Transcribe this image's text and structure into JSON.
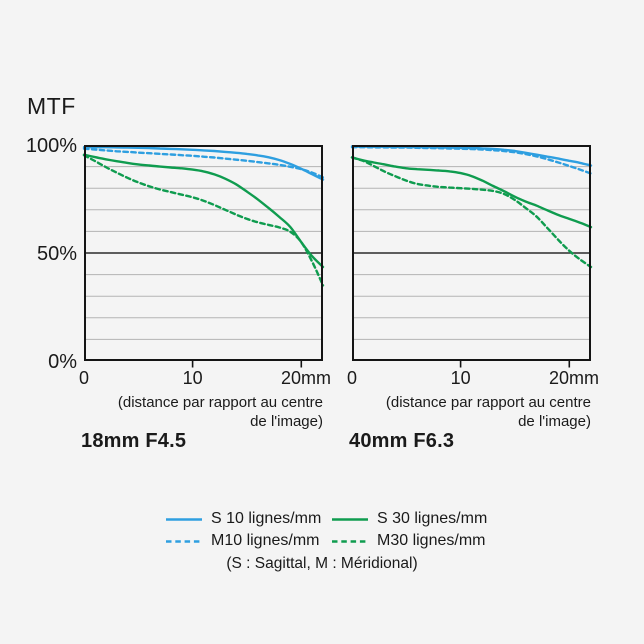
{
  "page": {
    "background": "#f4f4f4",
    "text_color": "#1a1a1a"
  },
  "header": {
    "title": "MTF"
  },
  "colors": {
    "blue": "#2e9fe0",
    "green": "#0f9c4f",
    "axis": "#141414",
    "grid_minor": "#b3b3b3",
    "grid_major": "#2b2b2b"
  },
  "y_axis": {
    "tick_labels": [
      "100%",
      "50%",
      "0%"
    ]
  },
  "x_axis": {
    "tick_labels": [
      "0",
      "10",
      "20mm"
    ],
    "tick_values": [
      0,
      10,
      20
    ],
    "caption_line1": "(distance par rapport au centre",
    "caption_line2": "de l'image)"
  },
  "legend": {
    "items": [
      {
        "label": "S 10 lignes/mm",
        "color": "#2e9fe0",
        "dashed": false
      },
      {
        "label": "M10 lignes/mm",
        "color": "#2e9fe0",
        "dashed": true
      },
      {
        "label": "S 30 lignes/mm",
        "color": "#0f9c4f",
        "dashed": false
      },
      {
        "label": "M30 lignes/mm",
        "color": "#0f9c4f",
        "dashed": true
      }
    ],
    "note": "(S : Sagittal, M : Méridional)"
  },
  "chart_data": [
    {
      "type": "line",
      "title": "18mm F4.5",
      "ylabel": "MTF",
      "xlabel": "(distance par rapport au centre de l'image)",
      "xlim": [
        0,
        22
      ],
      "ylim": [
        0,
        100
      ],
      "x_ticks": [
        0,
        10,
        20
      ],
      "x_tick_labels": [
        "0",
        "10",
        "20mm"
      ],
      "y_tick_labels": [
        "0%",
        "50%",
        "100%"
      ],
      "grid": "horizontal every 10%, 50% emphasized",
      "legend_position": "below-figure",
      "x": [
        0,
        1,
        2,
        3,
        4,
        5,
        6,
        7,
        8,
        9,
        10,
        11,
        12,
        13,
        14,
        15,
        16,
        17,
        18,
        19,
        20,
        21,
        22
      ],
      "series": [
        {
          "name": "S 10 lignes/mm",
          "style": "solid",
          "color": "#2e9fe0",
          "values": [
            99,
            99,
            99,
            98.9,
            98.8,
            98.7,
            98.6,
            98.4,
            98.2,
            98,
            97.8,
            97.5,
            97.2,
            96.8,
            96.4,
            95.9,
            95.2,
            94.3,
            93,
            91.2,
            89,
            86.5,
            84
          ]
        },
        {
          "name": "M10 lignes/mm",
          "style": "dashed",
          "color": "#2e9fe0",
          "values": [
            98.3,
            97.9,
            97.5,
            97.1,
            96.8,
            96.5,
            96.2,
            95.9,
            95.6,
            95.3,
            95,
            94.6,
            94.2,
            93.7,
            93.2,
            92.7,
            92.1,
            91.5,
            90.8,
            89.9,
            88.8,
            87.2,
            85
          ]
        },
        {
          "name": "S 30 lignes/mm",
          "style": "solid",
          "color": "#0f9c4f",
          "values": [
            95.5,
            94.4,
            93.4,
            92.5,
            91.7,
            91,
            90.5,
            90,
            89.6,
            89.2,
            88.6,
            87.8,
            86.4,
            84.4,
            81.8,
            78.4,
            74.8,
            70.8,
            66.6,
            62,
            55,
            48.5,
            43.5
          ]
        },
        {
          "name": "M30 lignes/mm",
          "style": "dashed",
          "color": "#0f9c4f",
          "values": [
            95.3,
            92.6,
            89.8,
            87.2,
            84.8,
            82.7,
            80.9,
            79.4,
            78.2,
            77,
            75.8,
            74.2,
            72.2,
            70,
            67.8,
            65.8,
            64.2,
            63,
            61.8,
            59.8,
            55,
            46,
            35
          ]
        }
      ]
    },
    {
      "type": "line",
      "title": "40mm F6.3",
      "ylabel": "MTF",
      "xlabel": "(distance par rapport au centre de l'image)",
      "xlim": [
        0,
        22
      ],
      "ylim": [
        0,
        100
      ],
      "x_ticks": [
        0,
        10,
        20
      ],
      "x_tick_labels": [
        "0",
        "10",
        "20mm"
      ],
      "y_tick_labels": [
        "0%",
        "50%",
        "100%"
      ],
      "grid": "horizontal every 10%, 50% emphasized",
      "legend_position": "below-figure",
      "x": [
        0,
        1,
        2,
        3,
        4,
        5,
        6,
        7,
        8,
        9,
        10,
        11,
        12,
        13,
        14,
        15,
        16,
        17,
        18,
        19,
        20,
        21,
        22
      ],
      "series": [
        {
          "name": "S 10 lignes/mm",
          "style": "solid",
          "color": "#2e9fe0",
          "values": [
            99.3,
            99.3,
            99.2,
            99.2,
            99.1,
            99.1,
            99,
            99,
            98.9,
            98.8,
            98.7,
            98.6,
            98.4,
            98.2,
            97.8,
            97.2,
            96.4,
            95.5,
            94.6,
            93.7,
            92.7,
            91.7,
            90.5
          ]
        },
        {
          "name": "M10 lignes/mm",
          "style": "dashed",
          "color": "#2e9fe0",
          "values": [
            99,
            99,
            98.9,
            98.9,
            98.8,
            98.8,
            98.7,
            98.6,
            98.5,
            98.4,
            98.3,
            98.1,
            97.9,
            97.6,
            97.2,
            96.6,
            95.8,
            94.7,
            93.4,
            91.9,
            90.3,
            88.6,
            86.8
          ]
        },
        {
          "name": "S 30 lignes/mm",
          "style": "solid",
          "color": "#0f9c4f",
          "values": [
            94.3,
            92.9,
            91.9,
            91,
            90,
            89.2,
            88.8,
            88.5,
            88.2,
            87.8,
            87,
            85.6,
            83.5,
            81,
            78.6,
            76,
            73.8,
            71.9,
            69.7,
            67.6,
            65.8,
            64,
            62
          ]
        },
        {
          "name": "M30 lignes/mm",
          "style": "dashed",
          "color": "#0f9c4f",
          "values": [
            94.2,
            92.7,
            90.3,
            87.7,
            85.5,
            83.5,
            82,
            81.2,
            80.6,
            80.3,
            80,
            79.7,
            79.3,
            78.7,
            77.3,
            74.5,
            70.8,
            66.8,
            61.5,
            56,
            51,
            47,
            43.5
          ]
        }
      ]
    }
  ]
}
